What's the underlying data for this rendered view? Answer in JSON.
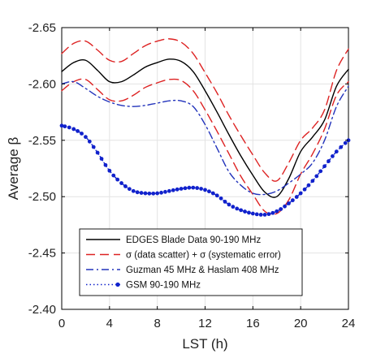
{
  "chart_data": {
    "type": "line",
    "xlabel": "LST (h)",
    "ylabel": "Average β",
    "xlim": [
      0,
      24
    ],
    "ylim": [
      -2.4,
      -2.65
    ],
    "y_axis_reversed": true,
    "xticks": [
      0,
      4,
      8,
      12,
      16,
      20,
      24
    ],
    "yticks": [
      -2.65,
      -2.6,
      -2.55,
      -2.5,
      -2.45,
      -2.4
    ],
    "xtick_labels": [
      "0",
      "4",
      "8",
      "12",
      "16",
      "20",
      "24"
    ],
    "ytick_labels": [
      "-2.65",
      "-2.60",
      "-2.55",
      "-2.50",
      "-2.45",
      "-2.40"
    ],
    "grid": true,
    "legend_position": "bottom-left",
    "series": [
      {
        "name": "EDGES Blade Data 90-190 MHz",
        "color": "#000000",
        "style": "solid",
        "x": [
          0,
          1,
          2,
          3,
          4,
          5,
          6,
          7,
          8,
          9,
          10,
          11,
          12,
          13,
          14,
          15,
          16,
          17,
          18,
          19,
          20,
          21,
          22,
          23,
          24
        ],
        "y": [
          -2.611,
          -2.619,
          -2.621,
          -2.612,
          -2.602,
          -2.602,
          -2.608,
          -2.615,
          -2.619,
          -2.622,
          -2.62,
          -2.611,
          -2.594,
          -2.575,
          -2.555,
          -2.536,
          -2.519,
          -2.504,
          -2.5,
          -2.516,
          -2.54,
          -2.553,
          -2.568,
          -2.598,
          -2.613
        ]
      },
      {
        "name": "σ (data scatter) + σ (systematic error)",
        "color": "#dd2222",
        "style": "dashed",
        "x": [
          0,
          1,
          2,
          3,
          4,
          5,
          6,
          7,
          8,
          9,
          10,
          11,
          12,
          13,
          14,
          15,
          16,
          17,
          18,
          19,
          20,
          21,
          22,
          23,
          24
        ],
        "y": [
          -2.627,
          -2.636,
          -2.638,
          -2.63,
          -2.621,
          -2.62,
          -2.627,
          -2.634,
          -2.638,
          -2.64,
          -2.637,
          -2.627,
          -2.61,
          -2.592,
          -2.572,
          -2.554,
          -2.537,
          -2.521,
          -2.514,
          -2.53,
          -2.55,
          -2.561,
          -2.577,
          -2.612,
          -2.631
        ]
      },
      {
        "name": "",
        "color": "#dd2222",
        "style": "dashed",
        "x": [
          0,
          1,
          2,
          3,
          4,
          5,
          6,
          7,
          8,
          9,
          10,
          11,
          12,
          13,
          14,
          15,
          16,
          17,
          18,
          19,
          20,
          21,
          22,
          23,
          24
        ],
        "y": [
          -2.594,
          -2.602,
          -2.604,
          -2.595,
          -2.586,
          -2.585,
          -2.59,
          -2.597,
          -2.601,
          -2.604,
          -2.603,
          -2.594,
          -2.577,
          -2.558,
          -2.538,
          -2.518,
          -2.502,
          -2.487,
          -2.485,
          -2.497,
          -2.52,
          -2.538,
          -2.56,
          -2.59,
          -2.602
        ]
      },
      {
        "name": "Guzman 45 MHz & Haslam 408 MHz",
        "color": "#2233bb",
        "style": "dashdot",
        "x": [
          0,
          1,
          2,
          3,
          4,
          5,
          6,
          7,
          8,
          9,
          10,
          11,
          12,
          13,
          14,
          15,
          16,
          17,
          18,
          19,
          20,
          21,
          22,
          23,
          24
        ],
        "y": [
          -2.6,
          -2.602,
          -2.596,
          -2.589,
          -2.584,
          -2.581,
          -2.58,
          -2.581,
          -2.583,
          -2.585,
          -2.585,
          -2.58,
          -2.564,
          -2.543,
          -2.522,
          -2.51,
          -2.503,
          -2.502,
          -2.505,
          -2.512,
          -2.52,
          -2.53,
          -2.55,
          -2.58,
          -2.598
        ]
      },
      {
        "name": "GSM 90-190 MHz",
        "color": "#1122cc",
        "style": "dotted-markers",
        "x": [
          0,
          1,
          2,
          3,
          4,
          5,
          6,
          7,
          8,
          9,
          10,
          11,
          12,
          13,
          14,
          15,
          16,
          17,
          18,
          19,
          20,
          21,
          22,
          23,
          24
        ],
        "y": [
          -2.563,
          -2.56,
          -2.553,
          -2.539,
          -2.523,
          -2.512,
          -2.505,
          -2.503,
          -2.503,
          -2.505,
          -2.507,
          -2.508,
          -2.506,
          -2.501,
          -2.493,
          -2.488,
          -2.485,
          -2.484,
          -2.487,
          -2.494,
          -2.503,
          -2.514,
          -2.527,
          -2.54,
          -2.55
        ]
      }
    ]
  }
}
